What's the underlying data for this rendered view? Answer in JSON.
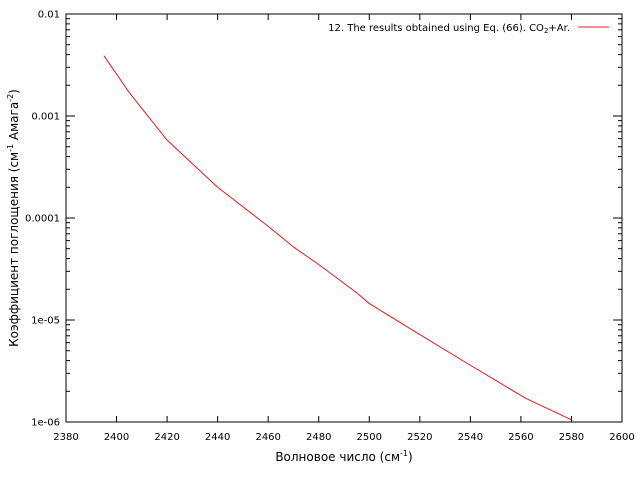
{
  "chart_data": {
    "type": "line",
    "title": "",
    "xlabel_main": "Волновое число (см",
    "xlabel_sup": "-1",
    "xlabel_end": ")",
    "ylabel_a": "Коэффициент поглощения (см",
    "ylabel_sup1": "-1",
    "ylabel_b": " Амага",
    "ylabel_sup2": "-2",
    "ylabel_c": ")",
    "xlim": [
      2380,
      2600
    ],
    "ylim": [
      1e-06,
      0.01
    ],
    "yscale": "log",
    "x_ticks": [
      "2380",
      "2400",
      "2420",
      "2440",
      "2460",
      "2480",
      "2500",
      "2520",
      "2540",
      "2560",
      "2580",
      "2600"
    ],
    "y_ticks": [
      "1e-06",
      "1e-05",
      "0.0001",
      "0.001",
      "0.01"
    ],
    "grid": false,
    "legend_position": "top-right",
    "legend_main": "12. The results obtained using Eq. (66). CO",
    "legend_sub": "2",
    "legend_end": "+Ar.",
    "line_color": "#e41a1c",
    "series": [
      {
        "x": [
          2395,
          2405,
          2420,
          2440,
          2460,
          2470,
          2480,
          2495,
          2500,
          2520,
          2540,
          2562,
          2580
        ],
        "y": [
          0.0039,
          0.0017,
          0.00058,
          0.0002,
          8.3e-05,
          5.2e-05,
          3.5e-05,
          1.85e-05,
          1.45e-05,
          7.2e-06,
          3.6e-06,
          1.7e-06,
          1.05e-06
        ]
      }
    ]
  }
}
